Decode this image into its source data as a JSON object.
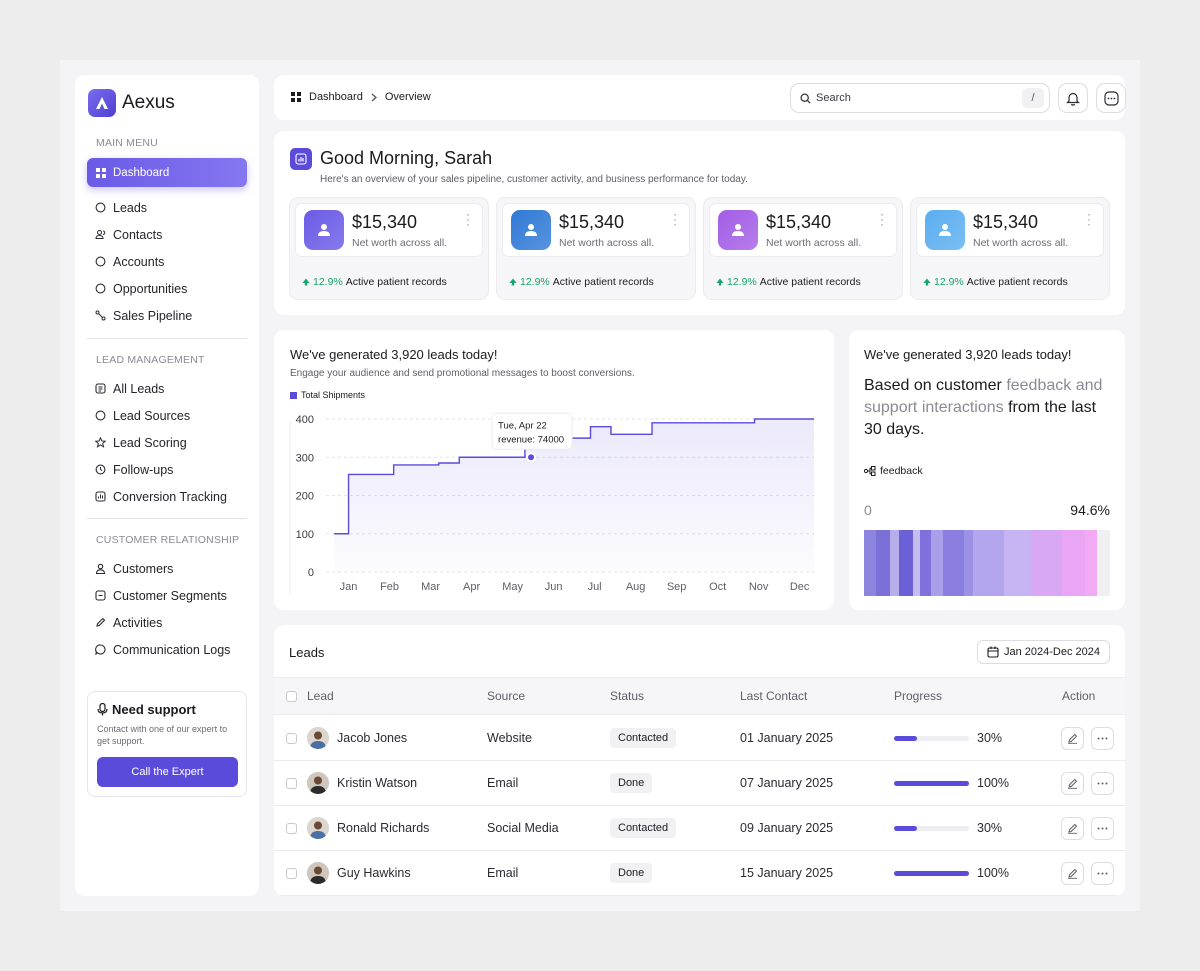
{
  "app": {
    "name": "Aexus"
  },
  "sidebar": {
    "sections": [
      {
        "title": "MAIN MENU",
        "items": [
          {
            "label": "Dashboard",
            "icon": "grid-icon",
            "active": true
          },
          {
            "label": "Leads",
            "icon": "leads-icon"
          },
          {
            "label": "Contacts",
            "icon": "contacts-icon"
          },
          {
            "label": "Accounts",
            "icon": "accounts-icon"
          },
          {
            "label": "Opportunities",
            "icon": "opportunities-icon"
          },
          {
            "label": "Sales Pipeline",
            "icon": "pipeline-icon"
          }
        ]
      },
      {
        "title": "LEAD MANAGEMENT",
        "items": [
          {
            "label": "All Leads",
            "icon": "list-icon"
          },
          {
            "label": "Lead Sources",
            "icon": "sources-icon"
          },
          {
            "label": "Lead Scoring",
            "icon": "star-icon"
          },
          {
            "label": "Follow-ups",
            "icon": "clock-icon"
          },
          {
            "label": "Conversion Tracking",
            "icon": "tracking-icon"
          }
        ]
      },
      {
        "title": "CUSTOMER RELATIONSHIP",
        "items": [
          {
            "label": "Customers",
            "icon": "user-icon"
          },
          {
            "label": "Customer Segments",
            "icon": "segments-icon"
          },
          {
            "label": "Activities",
            "icon": "pen-icon"
          },
          {
            "label": "Communication Logs",
            "icon": "chat-icon"
          }
        ]
      }
    ],
    "support": {
      "title": "Need support",
      "text": "Contact with one of our expert to get support.",
      "button": "Call the Expert"
    }
  },
  "topbar": {
    "breadcrumb": [
      "Dashboard",
      "Overview"
    ],
    "search_placeholder": "Search",
    "search_shortcut": "/"
  },
  "greeting": {
    "title": "Good Morning, Sarah",
    "subtitle": "Here's an overview of your sales pipeline, customer activity, and business performance for today."
  },
  "stats": [
    {
      "value": "$15,340",
      "label": "Net worth across all.",
      "change": "12.9%",
      "footer": "Active patient records",
      "color": "#6a5ae6"
    },
    {
      "value": "$15,340",
      "label": "Net worth across all.",
      "change": "12.9%",
      "footer": "Active patient records",
      "color": "#2f79d6"
    },
    {
      "value": "$15,340",
      "label": "Net worth across all.",
      "change": "12.9%",
      "footer": "Active patient records",
      "color": "#a35de6"
    },
    {
      "value": "$15,340",
      "label": "Net worth across all.",
      "change": "12.9%",
      "footer": "Active patient records",
      "color": "#5aaef0"
    }
  ],
  "leads_chart": {
    "title": "We've generated 3,920 leads today!",
    "subtitle": "Engage your audience and send promotional messages to boost conversions.",
    "tooltip": {
      "date": "Tue, Apr 22",
      "text": "revenue: 74000"
    }
  },
  "chart_data": {
    "type": "line",
    "step": true,
    "title": "",
    "xlabel": "",
    "ylabel": "",
    "categories": [
      "Jan",
      "Feb",
      "Mar",
      "Apr",
      "May",
      "Jun",
      "Jul",
      "Aug",
      "Sep",
      "Oct",
      "Nov",
      "Dec"
    ],
    "x": [
      -0.35,
      0.0,
      1.1,
      2.2,
      2.7,
      3.2,
      3.8,
      4.3,
      5.9,
      6.4,
      6.9,
      7.4,
      8.4,
      9.9,
      11.35
    ],
    "series": [
      {
        "name": "Total Shipments",
        "values": [
          100,
          255,
          280,
          285,
          300,
          300,
          300,
          350,
          380,
          360,
          360,
          390,
          390,
          400,
          400
        ]
      }
    ],
    "yticks": [
      0,
      100,
      200,
      300,
      400
    ],
    "ylim": [
      0,
      400
    ],
    "highlight": {
      "x": 4.45,
      "y": 300
    },
    "grid": true,
    "legend": "top-left",
    "color": "#5b4bdb"
  },
  "feedback": {
    "title": "We've generated 3,920 leads today!",
    "text_a": "Based on customer",
    "text_b": "feedback",
    "text_c": "and support interactions",
    "text_d": "from the last 30 days.",
    "tag": "feedback",
    "min": "0",
    "max": "94.6%",
    "fill_percent": 94.6,
    "colors": [
      "#8d84de",
      "#7a70d8",
      "#b5aeea",
      "#6c60d6",
      "#c3bdf0",
      "#7d72dc",
      "#a79fe8",
      "#8a7fe0",
      "#9b92e6",
      "#b3a6ee",
      "#c7b5f3",
      "#d9a8f4",
      "#e8a6f4",
      "#f2aaf5"
    ]
  },
  "leads": {
    "title": "Leads",
    "date_range": "Jan 2024-Dec 2024",
    "columns": [
      "Lead",
      "Source",
      "Status",
      "Last Contact",
      "Progress",
      "Action"
    ],
    "rows": [
      {
        "name": "Jacob Jones",
        "source": "Website",
        "status": "Contacted",
        "last_contact": "01 January 2025",
        "progress": 30,
        "progress_label": "30%"
      },
      {
        "name": "Kristin Watson",
        "source": "Email",
        "status": "Done",
        "last_contact": "07 January 2025",
        "progress": 100,
        "progress_label": "100%"
      },
      {
        "name": "Ronald Richards",
        "source": "Social Media",
        "status": "Contacted",
        "last_contact": "09 January 2025",
        "progress": 30,
        "progress_label": "30%"
      },
      {
        "name": "Guy Hawkins",
        "source": "Email",
        "status": "Done",
        "last_contact": "15 January 2025",
        "progress": 100,
        "progress_label": "100%"
      }
    ]
  }
}
